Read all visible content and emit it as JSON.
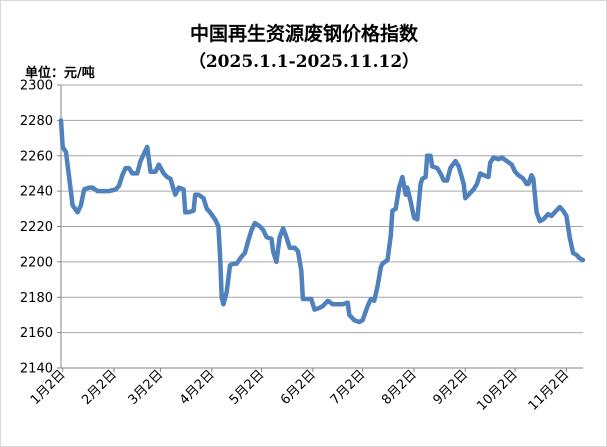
{
  "chart_data": {
    "type": "line",
    "title": "中国再生资源废钢价格指数",
    "subtitle": "（2025.1.1-2025.11.12）",
    "unit": "单位：元/吨",
    "color": "#4f81bd",
    "xlim": [
      "2025-01-01",
      "2025-11-12"
    ],
    "ylim": [
      2140,
      2300
    ],
    "yticks": [
      2140,
      2160,
      2180,
      2200,
      2220,
      2240,
      2260,
      2280,
      2300
    ],
    "grid": "horizontal",
    "xticks": [
      {
        "date": "2025-01-02",
        "label": "1月2日"
      },
      {
        "date": "2025-02-02",
        "label": "2月2日"
      },
      {
        "date": "2025-03-02",
        "label": "3月2日"
      },
      {
        "date": "2025-04-02",
        "label": "4月2日"
      },
      {
        "date": "2025-05-02",
        "label": "5月2日"
      },
      {
        "date": "2025-06-02",
        "label": "6月2日"
      },
      {
        "date": "2025-07-02",
        "label": "7月2日"
      },
      {
        "date": "2025-08-02",
        "label": "8月2日"
      },
      {
        "date": "2025-09-02",
        "label": "9月2日"
      },
      {
        "date": "2025-10-02",
        "label": "10月2日"
      },
      {
        "date": "2025-11-02",
        "label": "11月2日"
      }
    ],
    "x": [
      "2025-01-01",
      "2025-01-02",
      "2025-01-04",
      "2025-01-06",
      "2025-01-08",
      "2025-01-11",
      "2025-01-13",
      "2025-01-15",
      "2025-01-18",
      "2025-01-20",
      "2025-01-23",
      "2025-01-26",
      "2025-01-30",
      "2025-02-03",
      "2025-02-05",
      "2025-02-07",
      "2025-02-09",
      "2025-02-11",
      "2025-02-13",
      "2025-02-16",
      "2025-02-18",
      "2025-02-21",
      "2025-02-22",
      "2025-02-24",
      "2025-02-27",
      "2025-03-01",
      "2025-03-04",
      "2025-03-06",
      "2025-03-08",
      "2025-03-11",
      "2025-03-13",
      "2025-03-16",
      "2025-03-17",
      "2025-03-19",
      "2025-03-22",
      "2025-03-23",
      "2025-03-25",
      "2025-03-28",
      "2025-03-30",
      "2025-04-01",
      "2025-04-04",
      "2025-04-06",
      "2025-04-07",
      "2025-04-08",
      "2025-04-09",
      "2025-04-11",
      "2025-04-13",
      "2025-04-15",
      "2025-04-17",
      "2025-04-20",
      "2025-04-22",
      "2025-04-24",
      "2025-04-26",
      "2025-04-28",
      "2025-05-01",
      "2025-05-03",
      "2025-05-05",
      "2025-05-08",
      "2025-05-09",
      "2025-05-11",
      "2025-05-13",
      "2025-05-15",
      "2025-05-17",
      "2025-05-19",
      "2025-05-22",
      "2025-05-24",
      "2025-05-26",
      "2025-05-27",
      "2025-05-29",
      "2025-06-01",
      "2025-06-03",
      "2025-06-06",
      "2025-06-08",
      "2025-06-11",
      "2025-06-14",
      "2025-06-17",
      "2025-06-20",
      "2025-06-23",
      "2025-06-24",
      "2025-06-27",
      "2025-06-30",
      "2025-07-02",
      "2025-07-05",
      "2025-07-07",
      "2025-07-09",
      "2025-07-11",
      "2025-07-13",
      "2025-07-14",
      "2025-07-17",
      "2025-07-19",
      "2025-07-20",
      "2025-07-22",
      "2025-07-24",
      "2025-07-26",
      "2025-07-28",
      "2025-07-29",
      "2025-07-31",
      "2025-08-02",
      "2025-08-04",
      "2025-08-06",
      "2025-08-07",
      "2025-08-09",
      "2025-08-10",
      "2025-08-12",
      "2025-08-13",
      "2025-08-16",
      "2025-08-18",
      "2025-08-20",
      "2025-08-22",
      "2025-08-24",
      "2025-08-27",
      "2025-08-29",
      "2025-09-01",
      "2025-09-02",
      "2025-09-04",
      "2025-09-07",
      "2025-09-09",
      "2025-09-11",
      "2025-09-13",
      "2025-09-16",
      "2025-09-17",
      "2025-09-19",
      "2025-09-22",
      "2025-09-24",
      "2025-09-27",
      "2025-09-30",
      "2025-10-02",
      "2025-10-04",
      "2025-10-07",
      "2025-10-09",
      "2025-10-10",
      "2025-10-12",
      "2025-10-13",
      "2025-10-15",
      "2025-10-17",
      "2025-10-19",
      "2025-10-22",
      "2025-10-24",
      "2025-10-26",
      "2025-10-29",
      "2025-10-31",
      "2025-11-02",
      "2025-11-04",
      "2025-11-06",
      "2025-11-08",
      "2025-11-10",
      "2025-11-12"
    ],
    "y": [
      2280,
      2265,
      2262,
      2247,
      2232,
      2228,
      2232,
      2241,
      2242,
      2242,
      2240,
      2240,
      2240,
      2241,
      2243,
      2249,
      2253,
      2253,
      2250,
      2250,
      2257,
      2263,
      2265,
      2251,
      2251,
      2255,
      2250,
      2248,
      2247,
      2238,
      2242,
      2241,
      2228,
      2228,
      2229,
      2238,
      2238,
      2236,
      2230,
      2228,
      2224,
      2220,
      2203,
      2180,
      2176,
      2183,
      2198,
      2199,
      2199,
      2203,
      2205,
      2212,
      2218,
      2222,
      2220,
      2218,
      2214,
      2213,
      2206,
      2200,
      2214,
      2219,
      2214,
      2208,
      2208,
      2206,
      2195,
      2179,
      2179,
      2179,
      2173,
      2174,
      2175,
      2178,
      2176,
      2176,
      2176,
      2177,
      2170,
      2167,
      2166,
      2167,
      2175,
      2179,
      2178,
      2186,
      2197,
      2199,
      2201,
      2215,
      2229,
      2230,
      2242,
      2248,
      2238,
      2242,
      2234,
      2225,
      2224,
      2244,
      2247,
      2248,
      2260,
      2260,
      2254,
      2253,
      2250,
      2246,
      2246,
      2253,
      2257,
      2254,
      2244,
      2236,
      2238,
      2241,
      2244,
      2250,
      2249,
      2248,
      2256,
      2259,
      2258,
      2259,
      2257,
      2255,
      2251,
      2249,
      2247,
      2244,
      2244,
      2249,
      2247,
      2228,
      2223,
      2224,
      2227,
      2226,
      2228,
      2231,
      2229,
      2226,
      2214,
      2205,
      2204,
      2202,
      2201
    ]
  }
}
